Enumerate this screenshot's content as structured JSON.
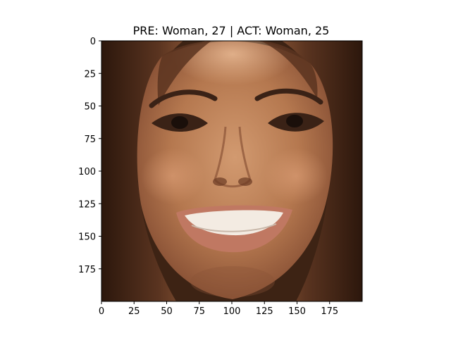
{
  "figure": {
    "title": "PRE: Woman, 27 | ACT: Woman, 25",
    "image_subject": "smiling-woman-face",
    "axes": {
      "x_range": [
        0,
        200
      ],
      "y_range": [
        0,
        200
      ],
      "y_inverted": true,
      "x_ticks": [
        "0",
        "25",
        "50",
        "75",
        "100",
        "125",
        "150",
        "175"
      ],
      "y_ticks": [
        "0",
        "25",
        "50",
        "75",
        "100",
        "125",
        "150",
        "175"
      ]
    },
    "colors": {
      "skin": "#b5784f",
      "hair": "#4a2a18",
      "lips": "#c07862",
      "teeth": "#f3ebe2",
      "eye": "#2a1a12"
    }
  }
}
